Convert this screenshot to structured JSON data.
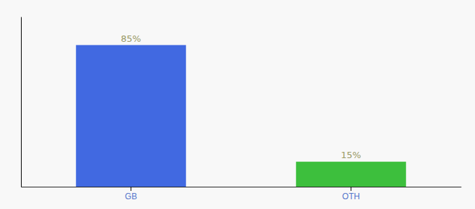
{
  "chart_data": {
    "type": "bar",
    "categories": [
      "GB",
      "OTH"
    ],
    "values": [
      85,
      15
    ],
    "value_labels": [
      "85%",
      "15%"
    ],
    "colors": [
      "#4169e1",
      "#3dbf3d"
    ],
    "ylim": [
      0,
      102
    ],
    "data_labels": true,
    "tick_labels": "x",
    "grid": false
  }
}
